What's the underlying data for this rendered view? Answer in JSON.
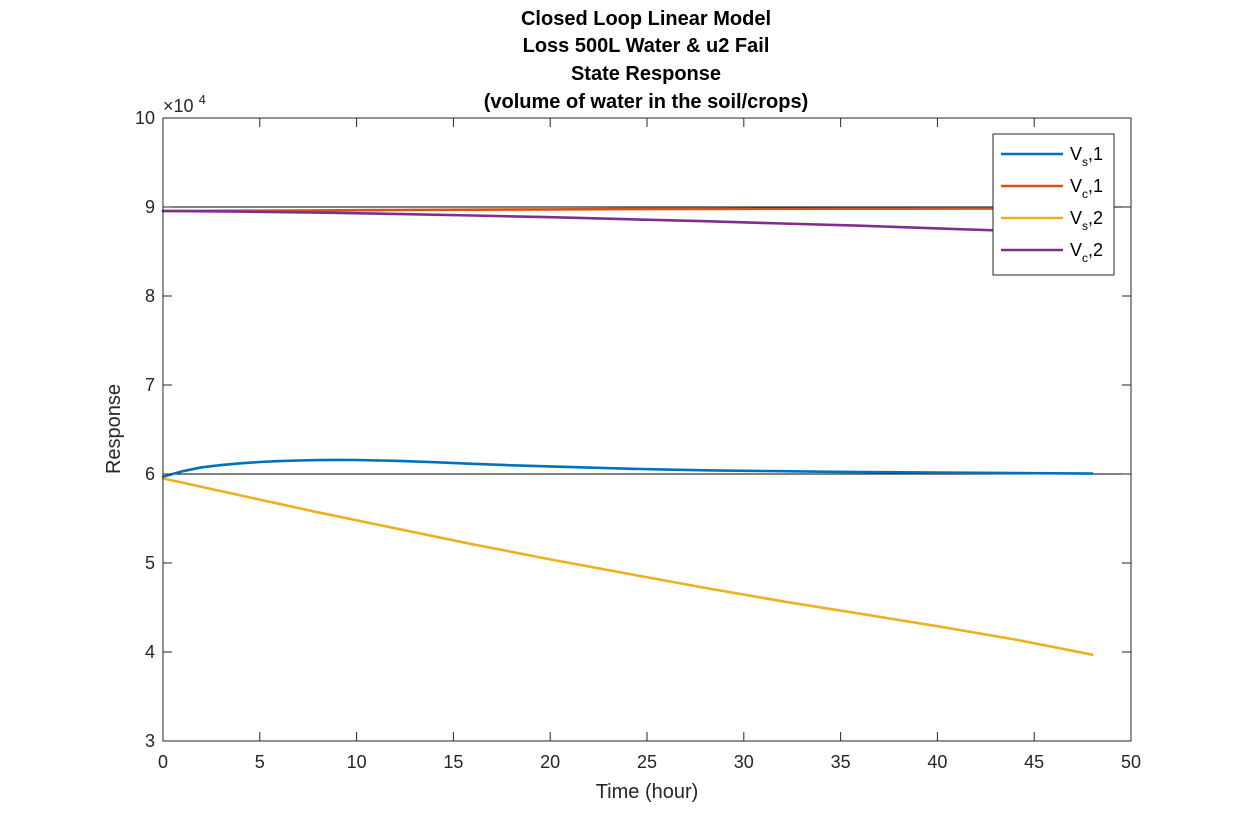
{
  "chart_data": {
    "type": "line",
    "title_lines": [
      "Closed Loop Linear Model",
      "Loss 500L Water & u2 Fail",
      "State Response",
      "(volume of water in the soil/crops)"
    ],
    "xlabel": "Time (hour)",
    "ylabel": "Response",
    "xlim": [
      0,
      50
    ],
    "ylim": [
      30000,
      100000
    ],
    "y_exponent_label": "×10",
    "y_exponent_power": "4",
    "xticks": [
      0,
      5,
      10,
      15,
      20,
      25,
      30,
      35,
      40,
      45,
      50
    ],
    "xtick_labels": [
      "0",
      "5",
      "10",
      "15",
      "20",
      "25",
      "30",
      "35",
      "40",
      "45",
      "50"
    ],
    "yticks": [
      30000,
      40000,
      50000,
      60000,
      70000,
      80000,
      90000,
      100000
    ],
    "ytick_labels": [
      "3",
      "4",
      "5",
      "6",
      "7",
      "8",
      "9",
      "10"
    ],
    "reference_lines": [
      90000,
      60000
    ],
    "legend_position": "top-right",
    "series": [
      {
        "legend_main": "V",
        "legend_sub": "s",
        "legend_suffix": ",1",
        "color": "#0072BD",
        "x": [
          0,
          1,
          2,
          3,
          4,
          5,
          6,
          7,
          8,
          9,
          10,
          12,
          14,
          16,
          18,
          20,
          22,
          24,
          26,
          28,
          30,
          32,
          34,
          36,
          38,
          40,
          42,
          44,
          46,
          48
        ],
        "y": [
          59700,
          60300,
          60750,
          61000,
          61200,
          61350,
          61450,
          61520,
          61560,
          61580,
          61570,
          61480,
          61330,
          61150,
          60980,
          60850,
          60720,
          60600,
          60500,
          60420,
          60360,
          60310,
          60260,
          60220,
          60190,
          60160,
          60130,
          60100,
          60080,
          60050
        ]
      },
      {
        "legend_main": "V",
        "legend_sub": "c",
        "legend_suffix": ",1",
        "color": "#D95319",
        "x": [
          0,
          4,
          8,
          12,
          16,
          20,
          24,
          28,
          32,
          36,
          40,
          44,
          48
        ],
        "y": [
          89550,
          89580,
          89620,
          89660,
          89700,
          89730,
          89760,
          89780,
          89800,
          89810,
          89820,
          89830,
          89840
        ]
      },
      {
        "legend_main": "V",
        "legend_sub": "s",
        "legend_suffix": ",2",
        "color": "#EDB120",
        "x": [
          0,
          4,
          8,
          12,
          16,
          20,
          24,
          28,
          32,
          36,
          40,
          44,
          48
        ],
        "y": [
          59500,
          57600,
          55700,
          53900,
          52100,
          50400,
          48800,
          47200,
          45700,
          44300,
          42900,
          41400,
          39700
        ]
      },
      {
        "legend_main": "V",
        "legend_sub": "c",
        "legend_suffix": ",2",
        "color": "#7E2F8E",
        "x": [
          0,
          4,
          8,
          12,
          16,
          20,
          24,
          28,
          32,
          36,
          40,
          44,
          48
        ],
        "y": [
          89550,
          89480,
          89370,
          89220,
          89050,
          88850,
          88630,
          88400,
          88150,
          87900,
          87600,
          87300,
          87000
        ]
      }
    ]
  }
}
